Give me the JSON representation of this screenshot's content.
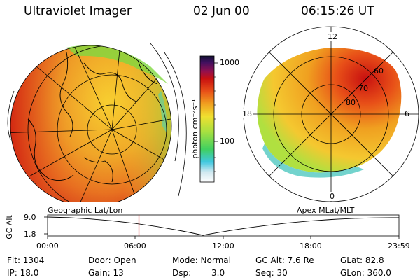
{
  "header": {
    "title": "Ultraviolet Imager",
    "date": "02 Jun 00",
    "time": "06:15:26 UT"
  },
  "colorbar": {
    "unit_label": "photon cm⁻²s⁻¹",
    "ticks": [
      "1000",
      "100"
    ]
  },
  "polar_plot": {
    "mlt_labels": [
      "12",
      "18",
      "6",
      "0"
    ],
    "lat_labels": [
      "60",
      "70",
      "80"
    ]
  },
  "timeline": {
    "left_label": "Geographic Lat/Lon",
    "right_label": "Apex MLat/MLT",
    "y_axis_label": "GC Alt",
    "y_ticks": [
      "9.0",
      "1.8"
    ],
    "x_ticks": [
      "00:00",
      "06:00",
      "12:00",
      "18:00",
      "23:59"
    ],
    "marker_time_fraction": 0.26
  },
  "info": {
    "flt": "Flt: 1304",
    "ip": "IP: 18.0",
    "door": "Door: Open",
    "gain": "Gain: 13",
    "mode": "Mode: Normal",
    "dsp_label": "Dsp:",
    "dsp_value": "3.0",
    "gc_alt": "GC Alt: 7.6 Re",
    "seq": "Seq: 30",
    "glat": "GLat: 82.8",
    "glon": "GLon: 360.0"
  },
  "colors": {
    "marker": "#d00000",
    "auroral_orange": "#f0a020",
    "auroral_red": "#e02010"
  }
}
